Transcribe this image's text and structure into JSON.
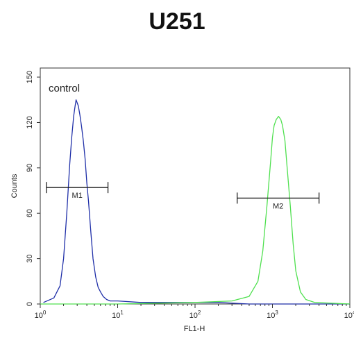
{
  "chart_data": {
    "type": "line",
    "title": "U251",
    "xlabel": "FL1-H",
    "ylabel": "Counts",
    "x_scale": "log",
    "xlim": [
      1,
      10000
    ],
    "ylim": [
      0,
      156
    ],
    "x_ticks": [
      {
        "value": 1,
        "base": "10",
        "exp": "0"
      },
      {
        "value": 10,
        "base": "10",
        "exp": "1"
      },
      {
        "value": 100,
        "base": "10",
        "exp": "2"
      },
      {
        "value": 1000,
        "base": "10",
        "exp": "3"
      },
      {
        "value": 10000,
        "base": "10",
        "exp": "4"
      }
    ],
    "y_ticks": [
      "0",
      "30",
      "60",
      "90",
      "120",
      "150"
    ],
    "annotation": "control",
    "series": [
      {
        "color": "#1f2fa8",
        "x": [
          1.1,
          1.5,
          1.8,
          2.0,
          2.2,
          2.4,
          2.55,
          2.7,
          2.8,
          2.9,
          3.0,
          3.1,
          3.25,
          3.4,
          3.6,
          3.8,
          4.0,
          4.2,
          4.5,
          4.8,
          5.2,
          5.6,
          6.0,
          6.5,
          7.2,
          8.0,
          10,
          20,
          50,
          100,
          200,
          500,
          1000,
          5000,
          10000
        ],
        "y": [
          1,
          4,
          12,
          30,
          60,
          92,
          110,
          124,
          130,
          135,
          133,
          131,
          125,
          118,
          108,
          96,
          80,
          68,
          48,
          30,
          18,
          11,
          8,
          5,
          3,
          2,
          2,
          1,
          1,
          1,
          1,
          0,
          0,
          0,
          0
        ]
      },
      {
        "color": "#4fe04f",
        "x": [
          1,
          10,
          100,
          300,
          500,
          650,
          750,
          850,
          950,
          1000,
          1050,
          1120,
          1200,
          1280,
          1350,
          1450,
          1550,
          1700,
          1850,
          2000,
          2300,
          2700,
          3500,
          10000
        ],
        "y": [
          0,
          0,
          1,
          2,
          5,
          15,
          35,
          65,
          95,
          110,
          118,
          122,
          124,
          122,
          118,
          108,
          90,
          65,
          40,
          22,
          8,
          3,
          1,
          0
        ]
      }
    ],
    "markers": [
      {
        "label": "M1",
        "x_start": 1.2,
        "x_end": 7.5,
        "y": 77
      },
      {
        "label": "M2",
        "x_start": 350,
        "x_end": 4000,
        "y": 70
      }
    ]
  }
}
